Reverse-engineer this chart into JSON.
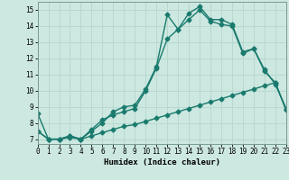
{
  "xlabel": "Humidex (Indice chaleur)",
  "background_color": "#cce8e0",
  "grid_color": "#b8d8d0",
  "line_color": "#1a7a6e",
  "line1_x": [
    0,
    1,
    2,
    3,
    4,
    5,
    6,
    7,
    8,
    9,
    10,
    11,
    12,
    13,
    14,
    15,
    16,
    17,
    18,
    19,
    20,
    21,
    22,
    23
  ],
  "line1_y": [
    8.6,
    7.0,
    7.0,
    7.2,
    7.0,
    7.5,
    8.0,
    8.7,
    9.0,
    9.1,
    10.1,
    11.5,
    14.7,
    13.8,
    14.8,
    15.2,
    14.4,
    14.4,
    14.1,
    12.4,
    12.6,
    11.3,
    10.4,
    8.9
  ],
  "line2_x": [
    0,
    1,
    2,
    3,
    4,
    5,
    6,
    7,
    8,
    9,
    10,
    11,
    12,
    13,
    14,
    15,
    16,
    17,
    18,
    19,
    20,
    21,
    22,
    23
  ],
  "line2_y": [
    7.5,
    7.0,
    7.0,
    7.2,
    7.0,
    7.6,
    8.2,
    8.5,
    8.7,
    8.9,
    10.0,
    11.4,
    13.2,
    13.8,
    14.4,
    15.0,
    14.3,
    14.1,
    14.0,
    12.3,
    12.6,
    11.2,
    10.5,
    8.8
  ],
  "line3_x": [
    0,
    1,
    2,
    3,
    4,
    5,
    6,
    7,
    8,
    9,
    10,
    11,
    12,
    13,
    14,
    15,
    16,
    17,
    18,
    19,
    20,
    21,
    22,
    23
  ],
  "line3_y": [
    7.5,
    7.0,
    7.0,
    7.1,
    7.0,
    7.2,
    7.4,
    7.6,
    7.8,
    7.9,
    8.1,
    8.3,
    8.5,
    8.7,
    8.9,
    9.1,
    9.3,
    9.5,
    9.7,
    9.9,
    10.1,
    10.3,
    10.5,
    8.8
  ],
  "xlim": [
    0,
    23
  ],
  "ylim": [
    6.7,
    15.5
  ],
  "yticks": [
    7,
    8,
    9,
    10,
    11,
    12,
    13,
    14,
    15
  ],
  "xticks": [
    0,
    1,
    2,
    3,
    4,
    5,
    6,
    7,
    8,
    9,
    10,
    11,
    12,
    13,
    14,
    15,
    16,
    17,
    18,
    19,
    20,
    21,
    22,
    23
  ],
  "marker": "D",
  "marker_size": 2.5,
  "line_width": 1.0
}
